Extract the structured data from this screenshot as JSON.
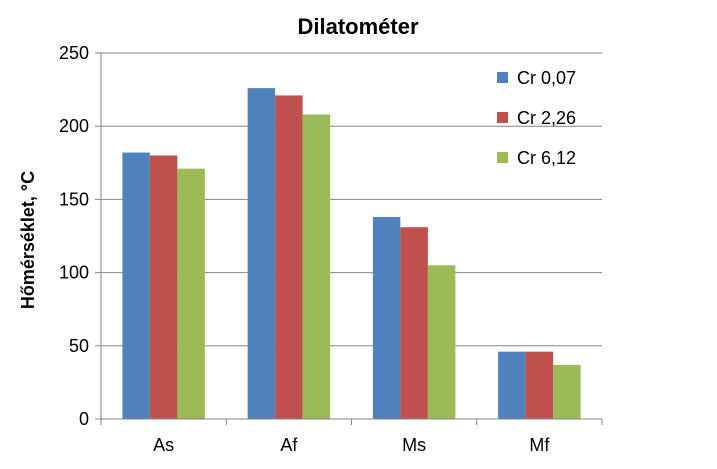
{
  "chart_data": {
    "type": "bar",
    "title": "Dilatométer",
    "xlabel": "",
    "ylabel": "Hőmérséklet, °C",
    "categories": [
      "As",
      "Af",
      "Ms",
      "Mf"
    ],
    "ylim": [
      0,
      250
    ],
    "yticks": [
      0,
      50,
      100,
      150,
      200,
      250
    ],
    "grid": true,
    "legend_position": "top-right",
    "series": [
      {
        "name": "Cr 0,07",
        "color": "#4f81bd",
        "values": [
          182,
          226,
          138,
          46
        ]
      },
      {
        "name": "Cr 2,26",
        "color": "#c0504d",
        "values": [
          180,
          221,
          131,
          46
        ]
      },
      {
        "name": "Cr 6,12",
        "color": "#9bbb59",
        "values": [
          171,
          208,
          105,
          37
        ]
      }
    ]
  }
}
